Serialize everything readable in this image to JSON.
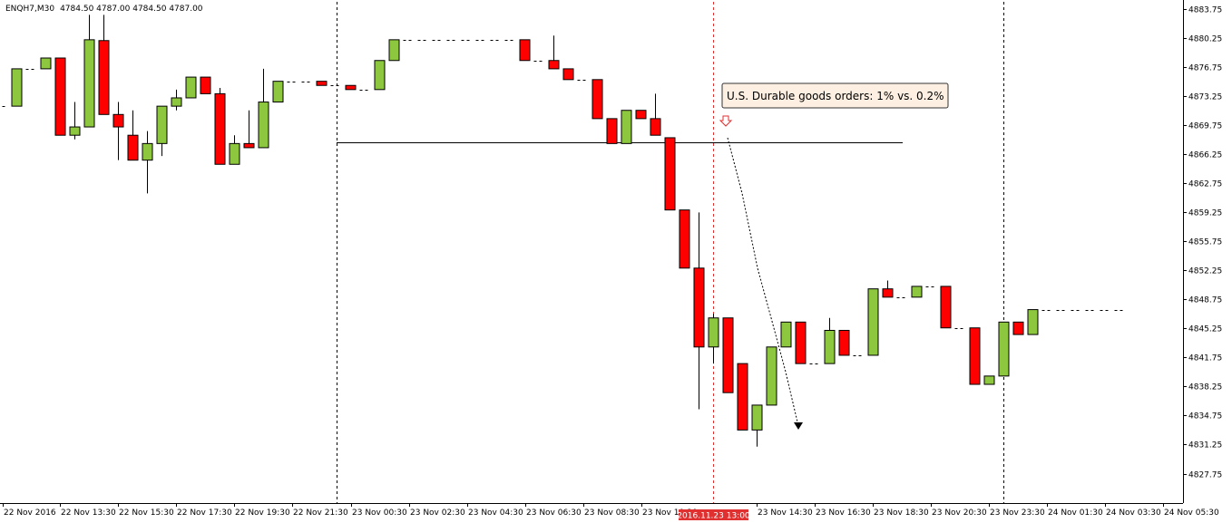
{
  "header": {
    "symbol": "ENQH7,M30",
    "ohlc": "4784.50 4787.00 4784.50 4787.00"
  },
  "annotation": {
    "text": "U.S. Durable goods orders: 1% vs. 0.2%",
    "time_tag": "2016.11.23 13:00"
  },
  "colors": {
    "bull": "#8dc63f",
    "bear": "#ff0000",
    "event_line": "#e03030",
    "annotation_bg": "#fdf0e2",
    "background": "#ffffff"
  },
  "chart_data": {
    "type": "candlestick",
    "ylim": [
      4825.5,
      4885.5
    ],
    "y_ticks": [
      "4883.75",
      "4880.25",
      "4876.75",
      "4873.25",
      "4869.75",
      "4866.25",
      "4862.75",
      "4859.25",
      "4855.75",
      "4852.25",
      "4848.75",
      "4845.25",
      "4841.75",
      "4838.25",
      "4834.75",
      "4831.25",
      "4827.75"
    ],
    "x_labels": [
      "22 Nov 2016",
      "22 Nov 13:30",
      "22 Nov 15:30",
      "22 Nov 17:30",
      "22 Nov 19:30",
      "22 Nov 21:30",
      "23 Nov 00:30",
      "23 Nov 02:30",
      "23 Nov 04:30",
      "23 Nov 06:30",
      "23 Nov 08:30",
      "23 Nov 10:30",
      "23 Nov 14:30",
      "23 Nov 16:30",
      "23 Nov 18:30",
      "23 Nov 20:30",
      "23 Nov 23:30",
      "24 Nov 01:30",
      "24 Nov 03:30",
      "24 Nov 05:30"
    ],
    "horizontal_level": 4867.6,
    "candles": [
      [
        4872.0,
        4872.0,
        4872.0,
        4872.0
      ],
      [
        4872.0,
        4876.5,
        4872.0,
        4876.5
      ],
      [
        4876.5,
        4876.5,
        4876.5,
        4876.5
      ],
      [
        4876.5,
        4877.8,
        4876.5,
        4877.8
      ],
      [
        4877.8,
        4877.8,
        4868.5,
        4868.5
      ],
      [
        4868.5,
        4872.5,
        4868.0,
        4869.5
      ],
      [
        4869.5,
        4883.0,
        4869.5,
        4880.0
      ],
      [
        4879.9,
        4883.0,
        4871.0,
        4871.0
      ],
      [
        4871.0,
        4872.5,
        4865.5,
        4869.5
      ],
      [
        4868.5,
        4871.5,
        4865.5,
        4865.5
      ],
      [
        4865.5,
        4869.0,
        4861.5,
        4867.5
      ],
      [
        4867.5,
        4872.0,
        4866.0,
        4872.0
      ],
      [
        4872.0,
        4874.0,
        4871.5,
        4873.0
      ],
      [
        4873.0,
        4875.5,
        4873.0,
        4875.5
      ],
      [
        4875.5,
        4875.5,
        4873.5,
        4873.5
      ],
      [
        4873.5,
        4874.2,
        4865.0,
        4865.0
      ],
      [
        4865.0,
        4868.5,
        4865.0,
        4867.5
      ],
      [
        4867.5,
        4871.5,
        4867.0,
        4867.0
      ],
      [
        4867.0,
        4876.5,
        4867.0,
        4872.5
      ],
      [
        4872.5,
        4875.0,
        4872.5,
        4875.0
      ],
      [
        4875.0,
        4875.0,
        4875.0,
        4875.0
      ],
      [
        4875.0,
        4875.0,
        4875.0,
        4875.0
      ],
      [
        4875.0,
        4875.0,
        4874.5,
        4874.5
      ],
      [
        4874.5,
        4874.5,
        4874.5,
        4874.5
      ],
      [
        4874.5,
        4874.5,
        4874.0,
        4874.0
      ],
      [
        4874.0,
        4874.0,
        4874.0,
        4874.0
      ],
      [
        4874.0,
        4877.5,
        4874.0,
        4877.5
      ],
      [
        4877.5,
        4880.0,
        4877.5,
        4880.0
      ],
      [
        4880.0,
        4880.0,
        4880.0,
        4880.0
      ],
      [
        4880.0,
        4880.0,
        4880.0,
        4880.0
      ],
      [
        4880.0,
        4880.0,
        4880.0,
        4880.0
      ],
      [
        4880.0,
        4880.0,
        4880.0,
        4880.0
      ],
      [
        4880.0,
        4880.0,
        4880.0,
        4880.0
      ],
      [
        4880.0,
        4880.0,
        4880.0,
        4880.0
      ],
      [
        4880.0,
        4880.0,
        4880.0,
        4880.0
      ],
      [
        4880.0,
        4880.0,
        4880.0,
        4880.0
      ],
      [
        4880.0,
        4880.0,
        4877.5,
        4877.5
      ],
      [
        4877.5,
        4877.5,
        4877.5,
        4877.5
      ],
      [
        4877.5,
        4880.5,
        4876.5,
        4876.5
      ],
      [
        4876.5,
        4876.5,
        4875.2,
        4875.2
      ],
      [
        4875.2,
        4875.2,
        4875.2,
        4875.2
      ],
      [
        4875.2,
        4875.2,
        4870.5,
        4870.5
      ],
      [
        4870.5,
        4870.5,
        4867.5,
        4867.5
      ],
      [
        4867.5,
        4871.5,
        4867.5,
        4871.5
      ],
      [
        4871.5,
        4871.5,
        4870.5,
        4870.5
      ],
      [
        4870.5,
        4873.5,
        4868.5,
        4868.5
      ],
      [
        4868.2,
        4868.2,
        4859.5,
        4859.5
      ],
      [
        4859.5,
        4859.5,
        4852.5,
        4852.5
      ],
      [
        4852.5,
        4859.2,
        4835.5,
        4843.0
      ],
      [
        4843.0,
        4847.0,
        4841.0,
        4846.5
      ],
      [
        4846.5,
        4846.5,
        4837.5,
        4837.5
      ],
      [
        4841.0,
        4841.0,
        4833.0,
        4833.0
      ],
      [
        4833.0,
        4836.0,
        4831.0,
        4836.0
      ],
      [
        4836.0,
        4843.0,
        4836.0,
        4843.0
      ],
      [
        4843.0,
        4846.0,
        4843.0,
        4846.0
      ],
      [
        4846.0,
        4846.0,
        4841.0,
        4841.0
      ],
      [
        4841.0,
        4841.0,
        4841.0,
        4841.0
      ],
      [
        4841.0,
        4846.5,
        4841.0,
        4845.0
      ],
      [
        4845.0,
        4845.0,
        4842.0,
        4842.0
      ],
      [
        4842.0,
        4842.0,
        4842.0,
        4842.0
      ],
      [
        4842.0,
        4850.0,
        4842.0,
        4850.0
      ],
      [
        4850.0,
        4851.0,
        4849.0,
        4849.0
      ],
      [
        4849.0,
        4849.0,
        4849.0,
        4849.0
      ],
      [
        4849.0,
        4850.3,
        4849.0,
        4850.3
      ],
      [
        4850.3,
        4850.3,
        4850.3,
        4850.3
      ],
      [
        4850.3,
        4850.3,
        4845.3,
        4845.3
      ],
      [
        4845.3,
        4845.3,
        4845.3,
        4845.3
      ],
      [
        4845.3,
        4845.3,
        4838.5,
        4838.5
      ],
      [
        4838.5,
        4839.5,
        4838.5,
        4839.5
      ],
      [
        4839.5,
        4846.0,
        4839.5,
        4846.0
      ],
      [
        4846.0,
        4846.0,
        4844.5,
        4844.5
      ],
      [
        4844.5,
        4847.5,
        4844.5,
        4847.5
      ],
      [
        4847.5,
        4847.5,
        4847.5,
        4847.5
      ],
      [
        4847.5,
        4847.5,
        4847.5,
        4847.5
      ],
      [
        4847.5,
        4847.5,
        4847.5,
        4847.5
      ],
      [
        4847.5,
        4847.5,
        4847.5,
        4847.5
      ],
      [
        4847.5,
        4847.5,
        4847.5,
        4847.5
      ],
      [
        4847.5,
        4847.5,
        4847.5,
        4847.5
      ]
    ]
  }
}
